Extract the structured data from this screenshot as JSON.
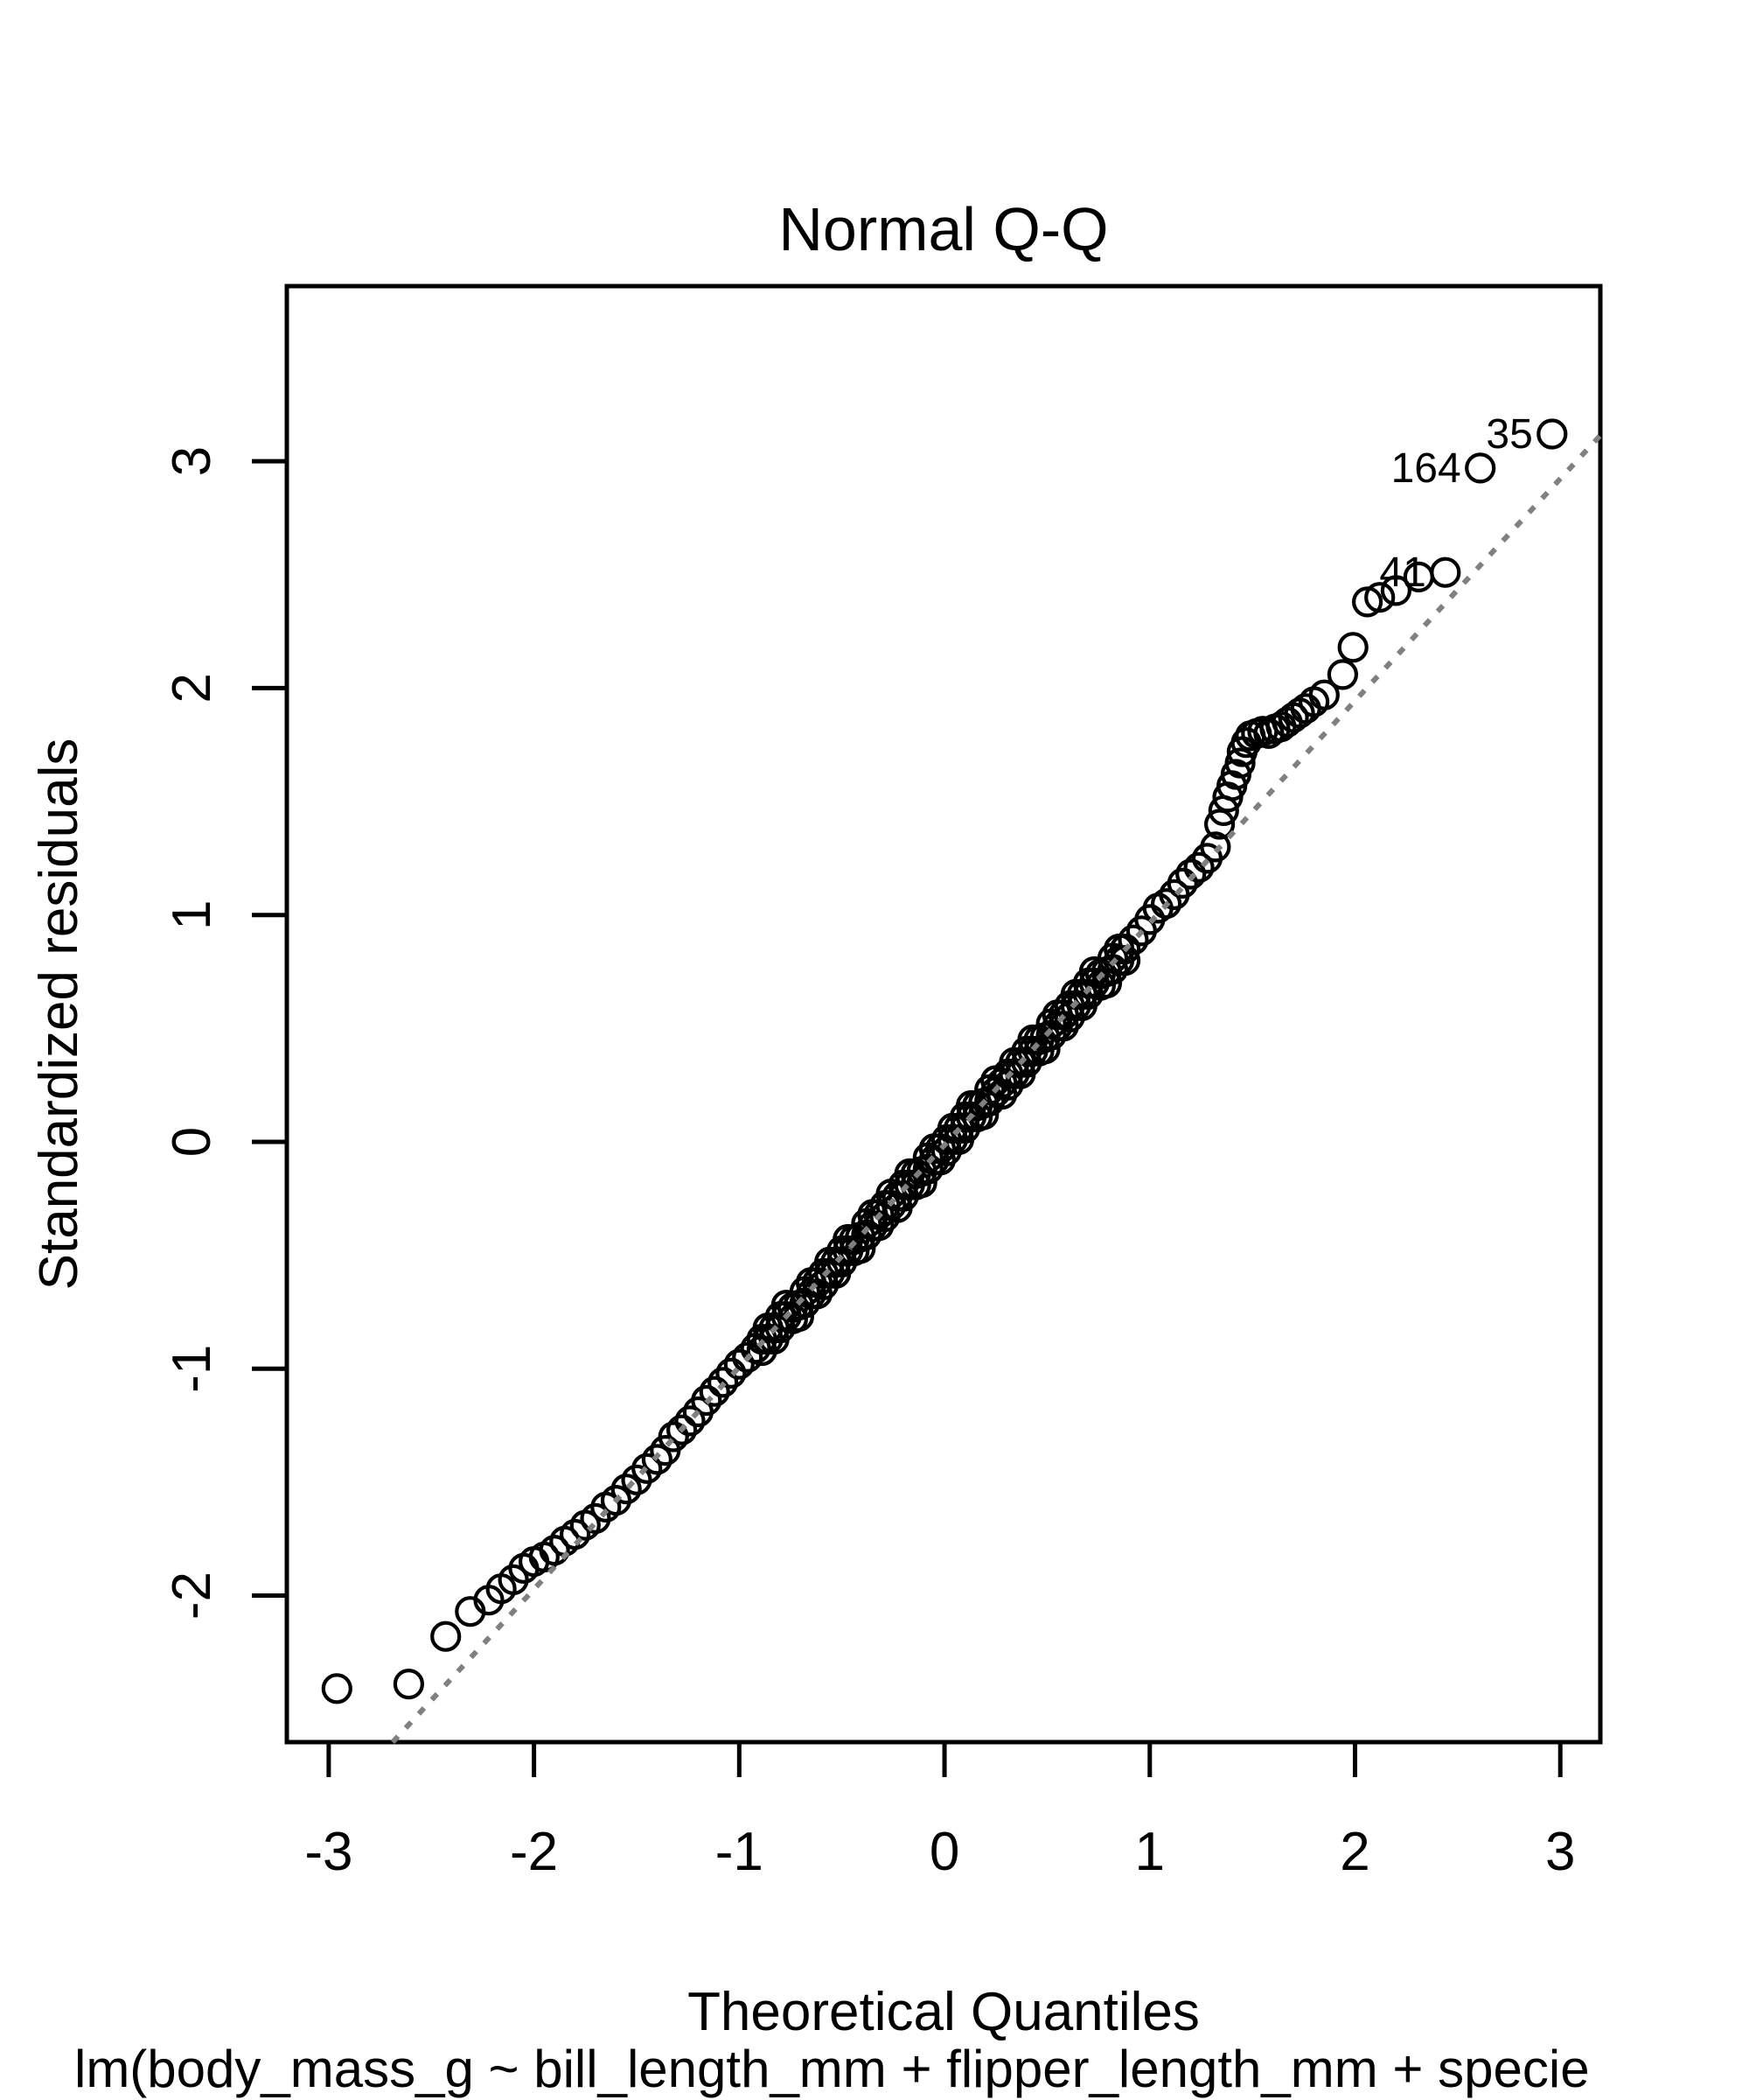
{
  "figure": {
    "title": "Normal Q-Q",
    "x_axis_label": "Theoretical Quantiles",
    "y_axis_label": "Standardized residuals",
    "caption": "lm(body_mass_g ~ bill_length_mm + flipper_length_mm + specie",
    "colors": {
      "points": "#000000",
      "reference_line": "#808080",
      "text": "#000000",
      "background": "#ffffff"
    }
  },
  "chart_data": {
    "type": "scatter",
    "title": "Normal Q-Q",
    "xlabel": "Theoretical Quantiles",
    "ylabel": "Standardized residuals",
    "caption": "lm(body_mass_g ~ bill_length_mm + flipper_length_mm + specie",
    "xlim": [
      -3.204,
      3.195
    ],
    "ylim": [
      -2.646,
      3.772
    ],
    "x_ticks": [
      -3,
      -2,
      -1,
      0,
      1,
      2,
      3
    ],
    "y_ticks": [
      -2,
      -1,
      0,
      1,
      2,
      3
    ],
    "grid": false,
    "legend": "none",
    "marker": "open-circle",
    "reference_line": {
      "style": "dotted",
      "slope": 0.979,
      "intercept": -0.014
    },
    "labeled_points": [
      {
        "label": "35",
        "x": 2.96,
        "y": 3.12
      },
      {
        "label": "164",
        "x": 2.61,
        "y": 2.97
      },
      {
        "label": "41",
        "x": 2.44,
        "y": 2.51
      }
    ],
    "points": [
      [
        -2.96,
        -2.41
      ],
      [
        -2.61,
        -2.39
      ],
      [
        -2.43,
        -2.18
      ],
      [
        -2.31,
        -2.07
      ],
      [
        -2.22,
        -2.02
      ],
      [
        -2.16,
        -1.97
      ],
      [
        -2.1,
        -1.93
      ],
      [
        -2.05,
        -1.88
      ],
      [
        -2.0,
        -1.85
      ],
      [
        -1.95,
        -1.83
      ],
      [
        -1.9,
        -1.8
      ],
      [
        -1.85,
        -1.76
      ],
      [
        -1.8,
        -1.73
      ],
      [
        -1.75,
        -1.69
      ],
      [
        -1.7,
        -1.66
      ],
      [
        -1.65,
        -1.61
      ],
      [
        -1.6,
        -1.58
      ],
      [
        -1.55,
        -1.53
      ],
      [
        -1.5,
        -1.49
      ],
      [
        -1.45,
        -1.44
      ],
      [
        -1.4,
        -1.4
      ],
      [
        -1.36,
        -1.36
      ],
      [
        -1.32,
        -1.3
      ],
      [
        -1.28,
        -1.27
      ],
      [
        -1.24,
        -1.23
      ],
      [
        -1.2,
        -1.19
      ],
      [
        -1.16,
        -1.14
      ],
      [
        -1.12,
        -1.1
      ],
      [
        -1.08,
        -1.06
      ],
      [
        -1.04,
        -1.02
      ],
      [
        -1.0,
        -0.98
      ],
      [
        -0.96,
        -0.95
      ],
      [
        -0.92,
        -0.91
      ],
      [
        -0.89,
        -0.87
      ],
      [
        -0.86,
        -0.82
      ],
      [
        -0.83,
        -0.82
      ],
      [
        -0.8,
        -0.77
      ],
      [
        -0.77,
        -0.72
      ],
      [
        -0.74,
        -0.73
      ],
      [
        -0.71,
        -0.72
      ],
      [
        -0.68,
        -0.66
      ],
      [
        -0.65,
        -0.62
      ],
      [
        -0.62,
        -0.62
      ],
      [
        -0.59,
        -0.58
      ],
      [
        -0.56,
        -0.53
      ],
      [
        -0.53,
        -0.53
      ],
      [
        -0.5,
        -0.48
      ],
      [
        -0.47,
        -0.43
      ],
      [
        -0.44,
        -0.43
      ],
      [
        -0.41,
        -0.42
      ],
      [
        -0.38,
        -0.36
      ],
      [
        -0.35,
        -0.32
      ],
      [
        -0.32,
        -0.32
      ],
      [
        -0.29,
        -0.28
      ],
      [
        -0.26,
        -0.23
      ],
      [
        -0.23,
        -0.24
      ],
      [
        -0.2,
        -0.19
      ],
      [
        -0.17,
        -0.14
      ],
      [
        -0.14,
        -0.14
      ],
      [
        -0.11,
        -0.13
      ],
      [
        -0.08,
        -0.07
      ],
      [
        -0.05,
        -0.03
      ],
      [
        -0.02,
        -0.03
      ],
      [
        0.01,
        0.01
      ],
      [
        0.04,
        0.06
      ],
      [
        0.07,
        0.06
      ],
      [
        0.1,
        0.11
      ],
      [
        0.13,
        0.16
      ],
      [
        0.16,
        0.16
      ],
      [
        0.19,
        0.17
      ],
      [
        0.22,
        0.23
      ],
      [
        0.25,
        0.27
      ],
      [
        0.28,
        0.26
      ],
      [
        0.31,
        0.3
      ],
      [
        0.34,
        0.35
      ],
      [
        0.37,
        0.35
      ],
      [
        0.4,
        0.4
      ],
      [
        0.43,
        0.45
      ],
      [
        0.46,
        0.45
      ],
      [
        0.49,
        0.46
      ],
      [
        0.52,
        0.52
      ],
      [
        0.55,
        0.56
      ],
      [
        0.58,
        0.56
      ],
      [
        0.61,
        0.6
      ],
      [
        0.64,
        0.65
      ],
      [
        0.67,
        0.65
      ],
      [
        0.7,
        0.7
      ],
      [
        0.73,
        0.75
      ],
      [
        0.76,
        0.74
      ],
      [
        0.79,
        0.75
      ],
      [
        0.82,
        0.81
      ],
      [
        0.85,
        0.85
      ],
      [
        0.88,
        0.85
      ],
      [
        -0.89,
        -0.92
      ],
      [
        -0.86,
        -0.87
      ],
      [
        -0.83,
        -0.87
      ],
      [
        -0.8,
        -0.82
      ],
      [
        -0.77,
        -0.77
      ],
      [
        -0.74,
        -0.78
      ],
      [
        -0.71,
        -0.77
      ],
      [
        -0.68,
        -0.71
      ],
      [
        -0.65,
        -0.67
      ],
      [
        -0.62,
        -0.67
      ],
      [
        -0.59,
        -0.63
      ],
      [
        -0.56,
        -0.58
      ],
      [
        -0.53,
        -0.58
      ],
      [
        -0.5,
        -0.53
      ],
      [
        -0.47,
        -0.48
      ],
      [
        -0.44,
        -0.48
      ],
      [
        -0.41,
        -0.47
      ],
      [
        -0.38,
        -0.41
      ],
      [
        -0.35,
        -0.37
      ],
      [
        -0.32,
        -0.37
      ],
      [
        -0.29,
        -0.33
      ],
      [
        -0.26,
        -0.28
      ],
      [
        -0.23,
        -0.29
      ],
      [
        -0.2,
        -0.24
      ],
      [
        -0.17,
        -0.19
      ],
      [
        -0.14,
        -0.19
      ],
      [
        -0.11,
        -0.18
      ],
      [
        -0.08,
        -0.12
      ],
      [
        -0.05,
        -0.08
      ],
      [
        -0.02,
        -0.08
      ],
      [
        0.01,
        -0.04
      ],
      [
        0.04,
        0.01
      ],
      [
        0.07,
        0.01
      ],
      [
        0.1,
        0.06
      ],
      [
        0.13,
        0.11
      ],
      [
        0.16,
        0.11
      ],
      [
        0.19,
        0.12
      ],
      [
        0.22,
        0.18
      ],
      [
        0.25,
        0.22
      ],
      [
        0.28,
        0.21
      ],
      [
        0.31,
        0.25
      ],
      [
        0.34,
        0.3
      ],
      [
        0.37,
        0.3
      ],
      [
        0.4,
        0.35
      ],
      [
        0.43,
        0.4
      ],
      [
        0.46,
        0.4
      ],
      [
        0.49,
        0.41
      ],
      [
        0.52,
        0.47
      ],
      [
        0.55,
        0.51
      ],
      [
        0.58,
        0.51
      ],
      [
        0.61,
        0.55
      ],
      [
        0.64,
        0.6
      ],
      [
        0.67,
        0.6
      ],
      [
        0.7,
        0.65
      ],
      [
        0.73,
        0.7
      ],
      [
        0.76,
        0.69
      ],
      [
        0.79,
        0.7
      ],
      [
        0.82,
        0.76
      ],
      [
        0.85,
        0.8
      ],
      [
        0.88,
        0.8
      ],
      [
        0.92,
        0.89
      ],
      [
        0.96,
        0.93
      ],
      [
        1.0,
        0.98
      ],
      [
        1.04,
        1.03
      ],
      [
        1.08,
        1.05
      ],
      [
        1.12,
        1.09
      ],
      [
        1.16,
        1.14
      ],
      [
        1.2,
        1.18
      ],
      [
        1.24,
        1.21
      ],
      [
        1.28,
        1.25
      ],
      [
        1.32,
        1.3
      ],
      [
        1.34,
        1.4
      ],
      [
        1.36,
        1.46
      ],
      [
        1.38,
        1.52
      ],
      [
        1.4,
        1.57
      ],
      [
        1.42,
        1.62
      ],
      [
        1.44,
        1.67
      ],
      [
        1.45,
        1.72
      ],
      [
        1.47,
        1.76
      ],
      [
        1.49,
        1.79
      ],
      [
        1.52,
        1.8
      ],
      [
        1.55,
        1.81
      ],
      [
        1.58,
        1.8
      ],
      [
        1.61,
        1.82
      ],
      [
        1.64,
        1.83
      ],
      [
        1.67,
        1.85
      ],
      [
        1.7,
        1.87
      ],
      [
        1.73,
        1.89
      ],
      [
        1.76,
        1.91
      ],
      [
        1.8,
        1.94
      ],
      [
        1.85,
        1.97
      ],
      [
        1.94,
        2.06
      ],
      [
        1.99,
        2.18
      ],
      [
        2.06,
        2.38
      ],
      [
        2.12,
        2.4
      ],
      [
        2.2,
        2.43
      ],
      [
        2.31,
        2.49
      ],
      [
        2.44,
        2.51
      ],
      [
        2.61,
        2.97
      ],
      [
        2.96,
        3.12
      ]
    ]
  }
}
